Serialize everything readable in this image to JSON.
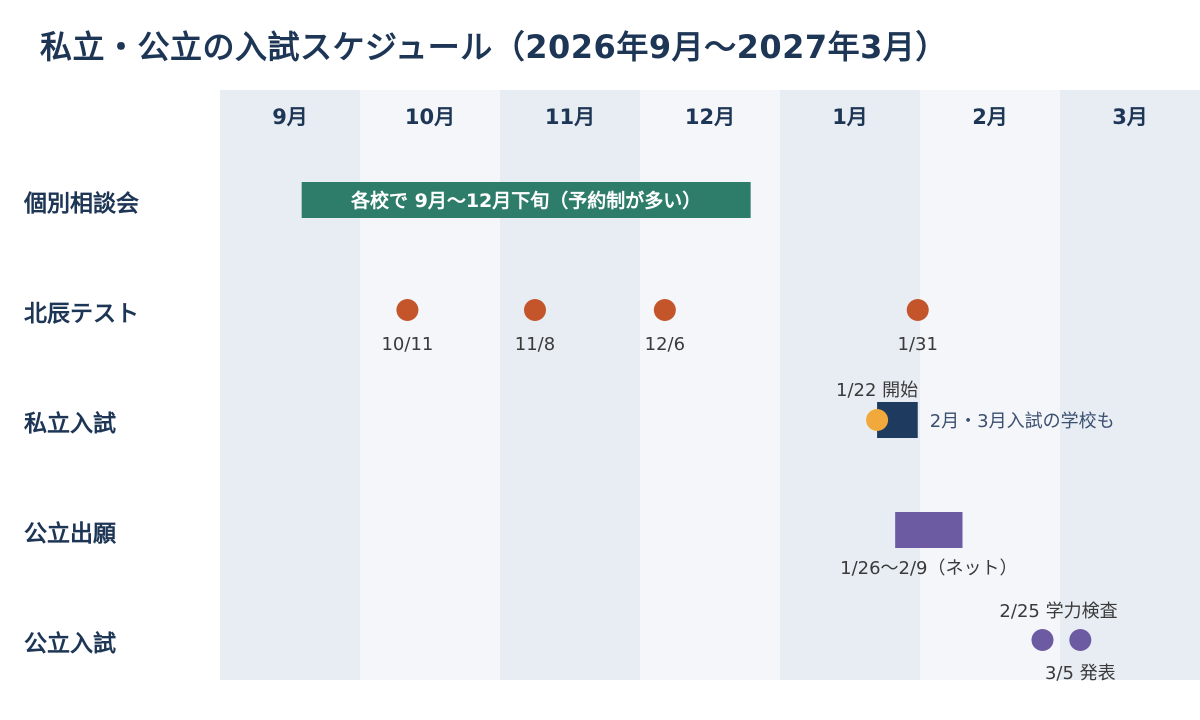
{
  "title": "私立・公立の入試スケジュール（2026年9月〜2027年3月）",
  "chart_data": {
    "type": "timeline",
    "months": [
      "9月",
      "10月",
      "11月",
      "12月",
      "1月",
      "2月",
      "3月"
    ],
    "month_keys": [
      "2026-09",
      "2026-10",
      "2026-11",
      "2026-12",
      "2027-01",
      "2027-02",
      "2027-03"
    ],
    "rows": [
      {
        "label": "個別相談会",
        "bars": [
          {
            "start": "2026-09-18",
            "end": "2026-12-25",
            "text": "各校で 9月〜12月下旬（予約制が多い）",
            "color": "#2e7d6b"
          }
        ],
        "points": [],
        "notes": []
      },
      {
        "label": "北辰テスト",
        "bars": [],
        "points": [
          {
            "date": "2026-10-11",
            "label": "10/11",
            "color": "#c4552b"
          },
          {
            "date": "2026-11-08",
            "label": "11/8",
            "color": "#c4552b"
          },
          {
            "date": "2026-12-06",
            "label": "12/6",
            "color": "#c4552b"
          },
          {
            "date": "2027-01-31",
            "label": "1/31",
            "color": "#c4552b"
          }
        ],
        "notes": []
      },
      {
        "label": "私立入試",
        "bars": [
          {
            "start": "2027-01-22",
            "end": "2027-01-31",
            "text": "",
            "color": "#1e3a5f"
          }
        ],
        "points": [
          {
            "date": "2027-01-22",
            "label": "1/22 開始",
            "color": "#f2a93b"
          }
        ],
        "notes": [
          {
            "after": "2027-01-31",
            "text": "2月・3月入試の学校も"
          }
        ]
      },
      {
        "label": "公立出願",
        "bars": [
          {
            "start": "2027-01-26",
            "end": "2027-02-09",
            "text": "",
            "color": "#6c5aa3",
            "caption": "1/26〜2/9（ネット）"
          }
        ],
        "points": [],
        "notes": []
      },
      {
        "label": "公立入試",
        "bars": [],
        "points": [
          {
            "date": "2027-02-25",
            "label": "2/25 学力検査",
            "color": "#6c5aa3"
          },
          {
            "date": "2027-03-05",
            "label": "3/5 発表",
            "color": "#6c5aa3"
          }
        ],
        "notes": []
      }
    ],
    "colors": {
      "band_dark": "#e8edf4",
      "band_light": "#f4f6f9",
      "text": "#1e3655"
    }
  }
}
